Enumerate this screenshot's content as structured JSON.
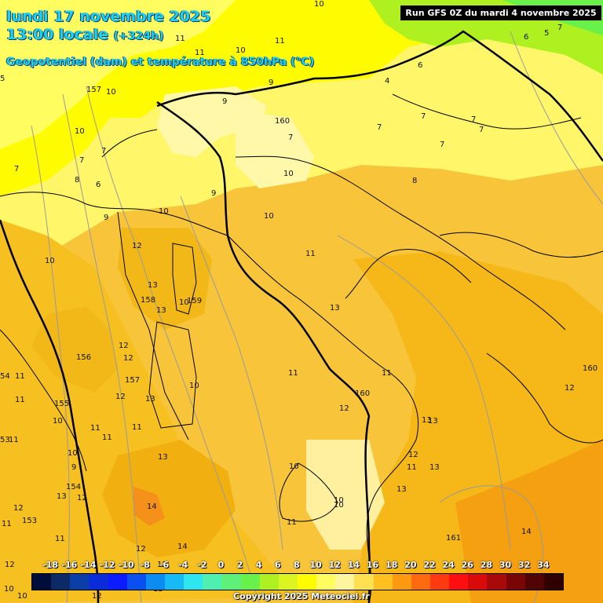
{
  "header": {
    "date_line": "lundi 17 novembre 2025",
    "time_line": "13:00 locale",
    "lead_time": "(+324h)",
    "parameter_line": "Geopotentiel (dam) et température à 850hPa (°C)"
  },
  "run_info": "Run GFS 0Z du mardi 4 novembre 2025",
  "legend": {
    "labels": [
      "-18",
      "-16",
      "-14",
      "-12",
      "-10",
      "-8",
      "-6",
      "-4",
      "-2",
      "0",
      "2",
      "4",
      "6",
      "8",
      "10",
      "12",
      "14",
      "16",
      "18",
      "20",
      "22",
      "24",
      "26",
      "28",
      "30",
      "32",
      "34"
    ],
    "colors": [
      "#000c3a",
      "#0c2a66",
      "#0b3ea6",
      "#0a2bd8",
      "#0d1cff",
      "#0a50f0",
      "#0a8cf2",
      "#17baf5",
      "#2ee6f0",
      "#4df0b0",
      "#5ef078",
      "#6af04a",
      "#aef020",
      "#dcf520",
      "#fffb00",
      "#fffd60",
      "#fff5a0",
      "#ffe050",
      "#ffc020",
      "#ff9a10",
      "#ff6a10",
      "#ff3a10",
      "#ff0f0f",
      "#d80a0a",
      "#a80a0a",
      "#7a0505",
      "#520303",
      "#300000"
    ]
  },
  "copyright": "Copyright 2025 Meteociel.fr",
  "map_labels": {
    "temperature": [
      "10",
      "11",
      "11",
      "9",
      "7",
      "6",
      "6",
      "5",
      "4",
      "157",
      "10",
      "10",
      "9",
      "7",
      "7",
      "7",
      "7",
      "7",
      "7",
      "7",
      "8",
      "10",
      "9",
      "10",
      "6",
      "8",
      "7",
      "7",
      "9",
      "10",
      "11",
      "12",
      "13",
      "158",
      "13",
      "10",
      "159",
      "12",
      "12",
      "13",
      "156",
      "157",
      "155",
      "12",
      "13",
      "12",
      "10",
      "11",
      "11",
      "11",
      "11",
      "12",
      "160",
      "13",
      "12",
      "11",
      "13",
      "10",
      "10",
      "9",
      "10",
      "11",
      "13",
      "13",
      "10",
      "12",
      "14",
      "14",
      "12",
      "12",
      "11",
      "13",
      "13",
      "154",
      "12",
      "12",
      "11",
      "153",
      "10",
      "10",
      "10",
      "12",
      "13",
      "11",
      "14",
      "161",
      "160",
      "11",
      "54",
      "11",
      "53",
      "11",
      "10",
      "11",
      "5",
      "10"
    ],
    "geopotential": [
      "160",
      "157",
      "158",
      "159",
      "156",
      "157",
      "155",
      "160",
      "161",
      "160",
      "154",
      "153"
    ]
  }
}
